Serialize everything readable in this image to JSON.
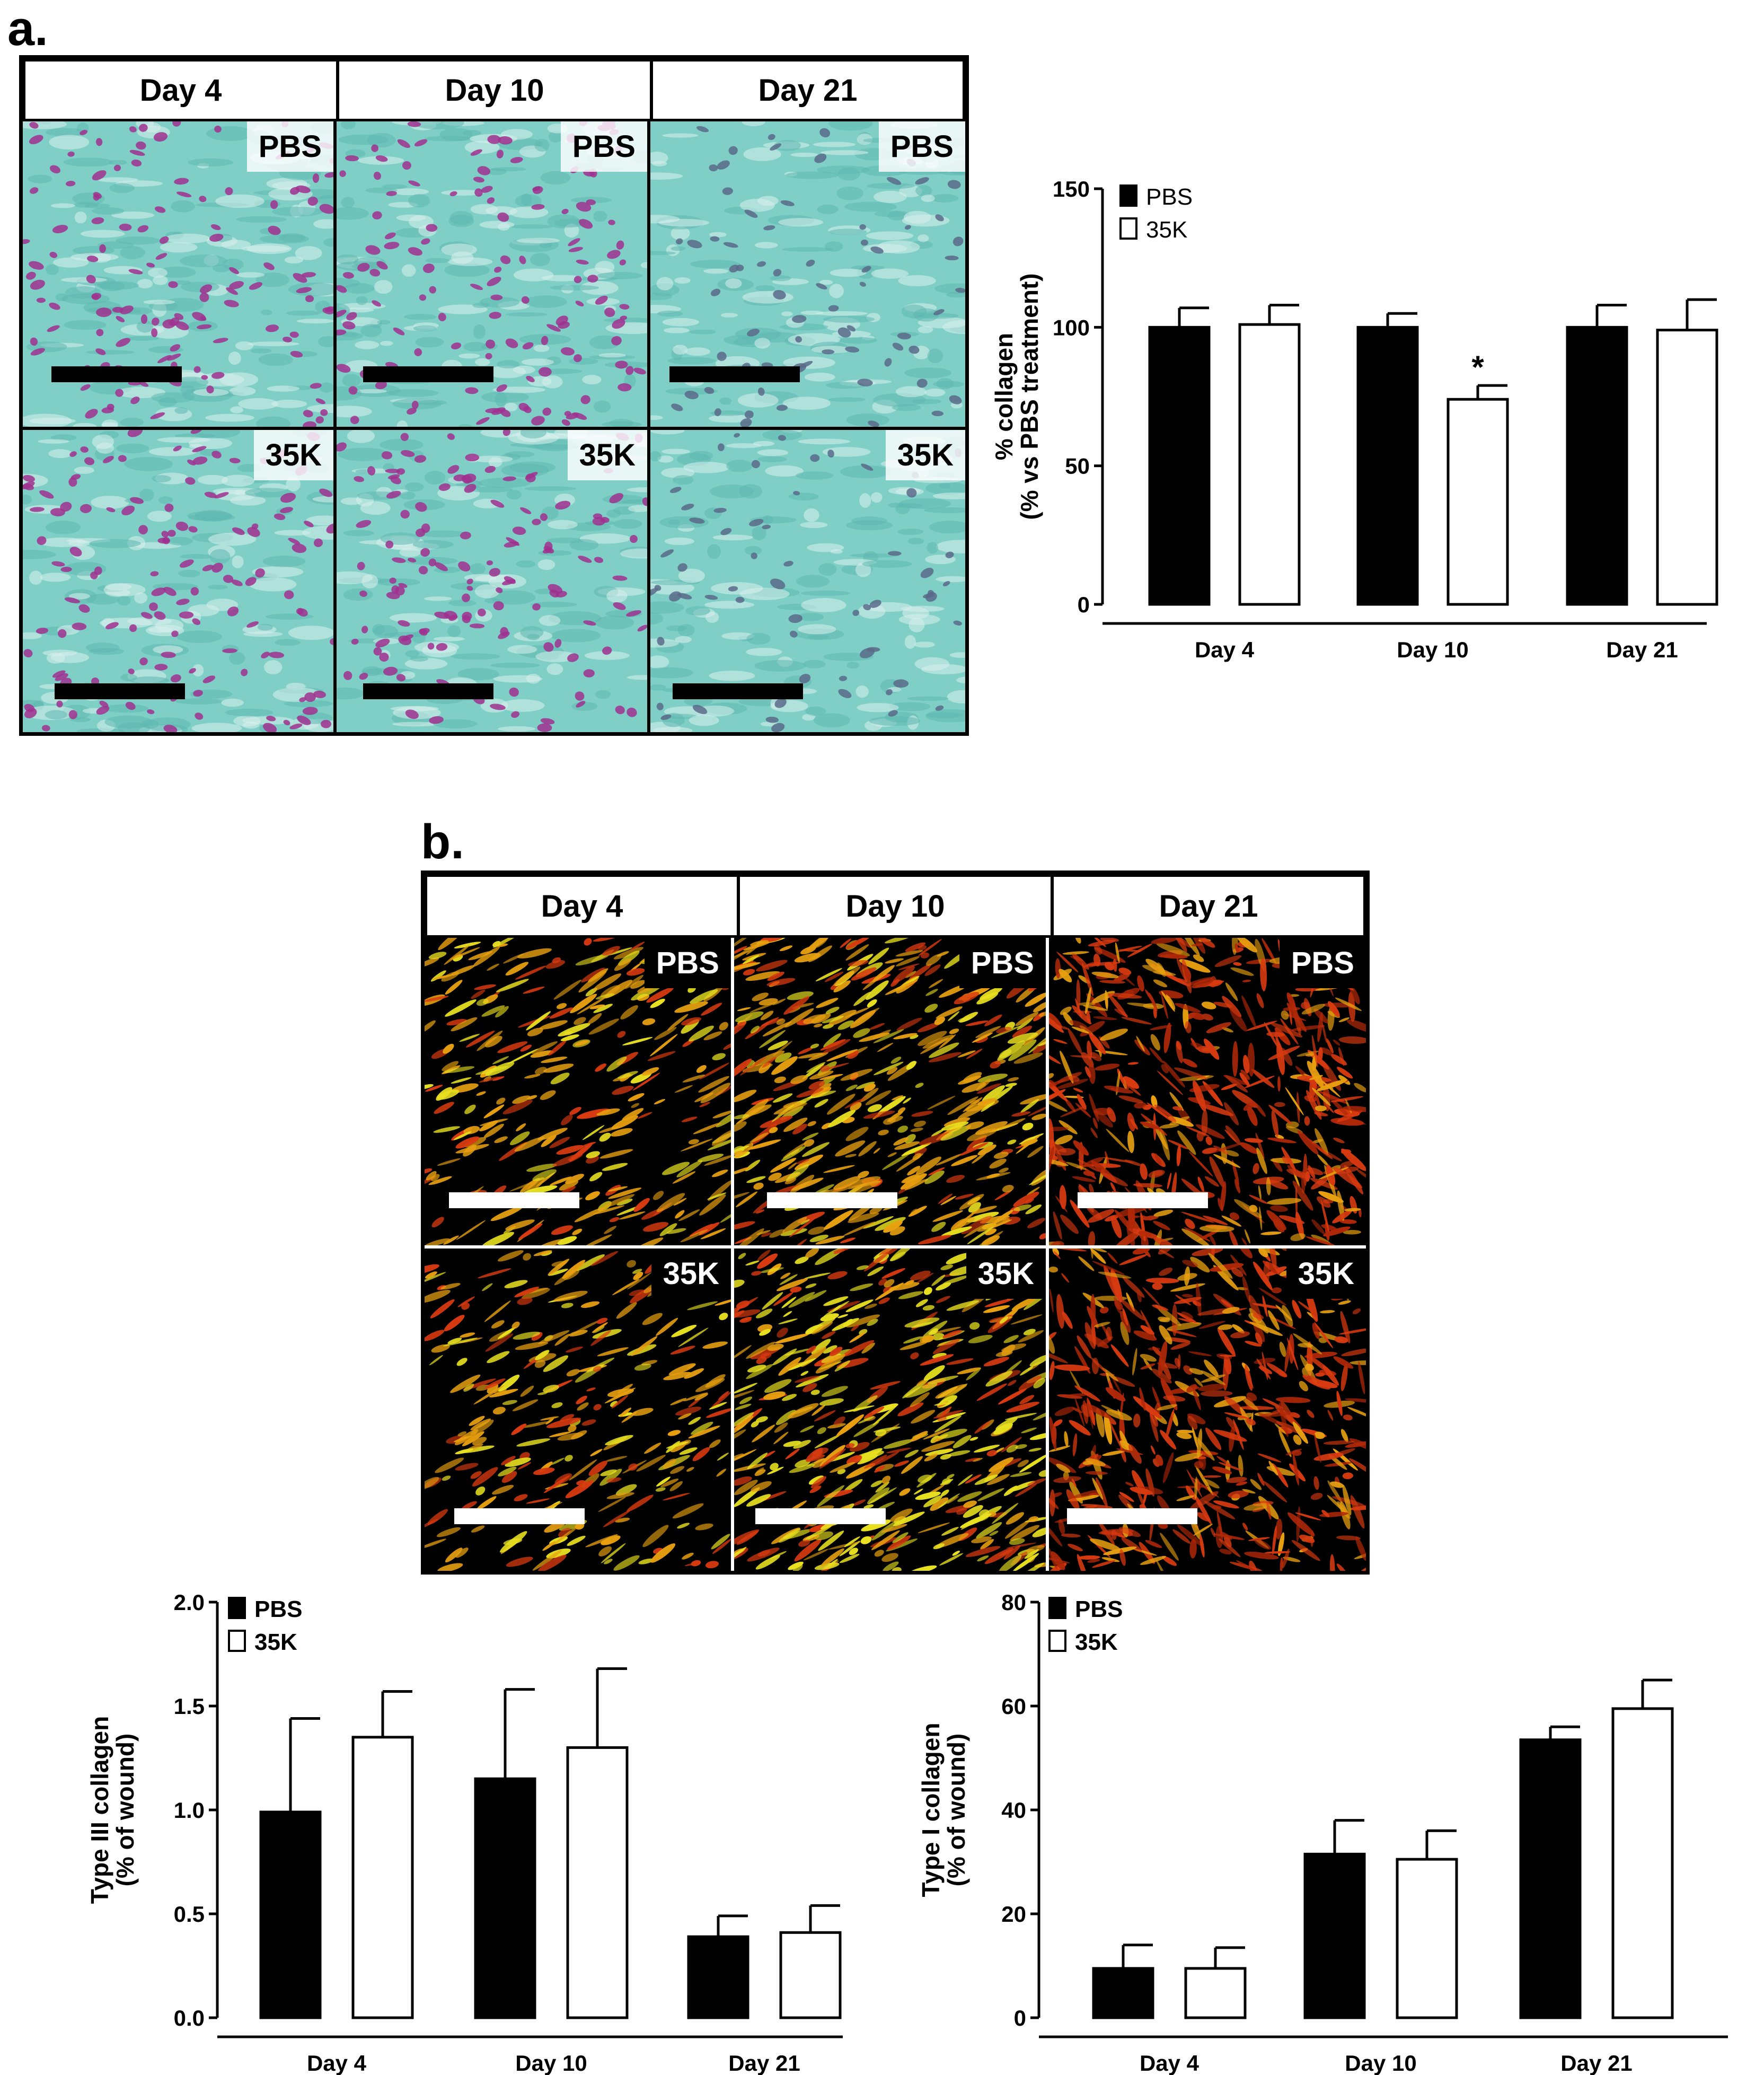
{
  "panel_a": {
    "letter": "a.",
    "columns": [
      "Day 4",
      "Day 10",
      "Day 21"
    ],
    "rows": [
      "PBS",
      "35K"
    ],
    "stain": {
      "background": "#7fcfc6",
      "nuclei": "#a0308f",
      "fiber": "#5fb8b0"
    }
  },
  "panel_b": {
    "letter": "b.",
    "columns": [
      "Day 4",
      "Day 10",
      "Day 21"
    ],
    "rows": [
      "PBS",
      "35K"
    ],
    "stain": {
      "background": "#000000",
      "fiber1": "#e8a010",
      "fiber2": "#d83a10",
      "fiber3": "#e8e020"
    }
  },
  "chart_data": [
    {
      "id": "collagen-percent",
      "type": "bar",
      "categories": [
        "Day 4",
        "Day 10",
        "Day 21"
      ],
      "series": [
        {
          "name": "PBS",
          "values": [
            100,
            100,
            100
          ],
          "errors": [
            7,
            5,
            8
          ],
          "color": "#000000"
        },
        {
          "name": "35K",
          "values": [
            101,
            74,
            99
          ],
          "errors": [
            7,
            5,
            11
          ],
          "color": "#ffffff"
        }
      ],
      "significance": [
        {
          "category": "Day 10",
          "series": "35K",
          "label": "*"
        }
      ],
      "ylabel": "% collagen",
      "ylabel2": "(% vs PBS treatment)",
      "ylim": [
        0,
        150
      ],
      "yticks": [
        "0",
        "50",
        "100",
        "150"
      ],
      "legend": "top-left"
    },
    {
      "id": "type3-collagen",
      "type": "bar",
      "categories": [
        "Day 4",
        "Day 10",
        "Day 21"
      ],
      "series": [
        {
          "name": "PBS",
          "values": [
            0.99,
            1.15,
            0.39
          ],
          "errors": [
            0.45,
            0.43,
            0.1
          ],
          "color": "#000000"
        },
        {
          "name": "35K",
          "values": [
            1.35,
            1.3,
            0.41
          ],
          "errors": [
            0.22,
            0.38,
            0.13
          ],
          "color": "#ffffff"
        }
      ],
      "ylabel": "Type III collagen",
      "ylabel2": "(% of wound)",
      "ylim": [
        0,
        2.0
      ],
      "yticks": [
        "0.0",
        "0.5",
        "1.0",
        "1.5",
        "2.0"
      ],
      "legend": "top-left"
    },
    {
      "id": "type1-collagen",
      "type": "bar",
      "categories": [
        "Day 4",
        "Day 10",
        "Day 21"
      ],
      "series": [
        {
          "name": "PBS",
          "values": [
            9.5,
            31.5,
            53.5
          ],
          "errors": [
            4.5,
            6.5,
            2.5
          ],
          "color": "#000000"
        },
        {
          "name": "35K",
          "values": [
            9.5,
            30.5,
            59.5
          ],
          "errors": [
            4,
            5.5,
            5.5
          ],
          "color": "#ffffff"
        }
      ],
      "ylabel": "Type I collagen",
      "ylabel2": "(% of wound)",
      "ylim": [
        0,
        80
      ],
      "yticks": [
        "0",
        "20",
        "40",
        "60",
        "80"
      ],
      "legend": "top-left"
    }
  ]
}
